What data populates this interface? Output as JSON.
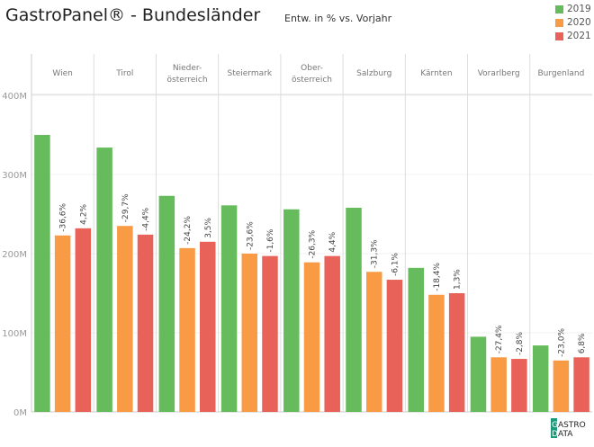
{
  "title": "GastroPanel® - Bundesländer",
  "subtitle": "Entw. in % vs. Vorjahr",
  "colors": {
    "2019": "#66bb5c",
    "2020": "#f89b44",
    "2021": "#e8625a"
  },
  "logo": {
    "line1": "GASTRO",
    "line2": "DATA"
  },
  "chart_data": {
    "type": "bar",
    "categories": [
      "Wien",
      "Tirol",
      "Nieder-\nösterreich",
      "Steiermark",
      "Ober-\nösterreich",
      "Salzburg",
      "Kärnten",
      "Vorarlberg",
      "Burgenland"
    ],
    "series": [
      {
        "name": "2019",
        "values": [
          350,
          334,
          273,
          261,
          256,
          258,
          182,
          95,
          84
        ]
      },
      {
        "name": "2020",
        "values": [
          223,
          235,
          207,
          200,
          189,
          177,
          148,
          69,
          65
        ]
      },
      {
        "name": "2021",
        "values": [
          232,
          224,
          215,
          197,
          197,
          167,
          150,
          67,
          69
        ]
      }
    ],
    "data_labels": {
      "2020": [
        "-36,6%",
        "-29,7%",
        "-24,2%",
        "-23,6%",
        "-26,3%",
        "-31,3%",
        "-18,4%",
        "-27,4%",
        "-23,0%"
      ],
      "2021": [
        "4,2%",
        "-4,4%",
        "3,5%",
        "-1,6%",
        "4,4%",
        "-6,1%",
        "1,3%",
        "-2,8%",
        "6,8%"
      ]
    },
    "yticks": [
      "0M",
      "100M",
      "200M",
      "300M",
      "400M"
    ],
    "ytick_values": [
      0,
      100,
      200,
      300,
      400
    ],
    "ylim": [
      0,
      430
    ],
    "legend": "top-right",
    "grid": true
  }
}
